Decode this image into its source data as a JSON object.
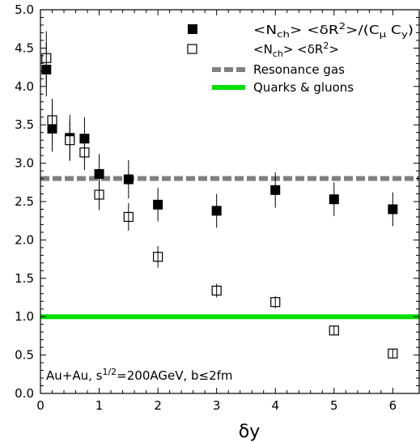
{
  "chart_data": {
    "type": "scatter",
    "xlabel": "δy",
    "xlim": [
      0,
      6.45
    ],
    "ylim": [
      0,
      5.0
    ],
    "x_ticks": [
      0,
      1,
      2,
      3,
      4,
      5,
      6
    ],
    "y_ticks": [
      0.0,
      0.5,
      1.0,
      1.5,
      2.0,
      2.5,
      3.0,
      3.5,
      4.0,
      4.5,
      5.0
    ],
    "x_tick_labels": [
      "0",
      "1",
      "2",
      "3",
      "4",
      "5",
      "6"
    ],
    "y_tick_labels": [
      "0.0",
      "0.5",
      "1.0",
      "1.5",
      "2.0",
      "2.5",
      "3.0",
      "3.5",
      "4.0",
      "4.5",
      "5.0"
    ],
    "legend_position": "top-right",
    "series": [
      {
        "name": "<N_ch> <δR²>/(C_μ C_y)",
        "marker": "filled-square",
        "color": "#000000",
        "x": [
          0.1,
          0.2,
          0.5,
          0.75,
          1.0,
          1.5,
          2.0,
          3.0,
          4.0,
          5.0,
          6.0
        ],
        "y": [
          4.22,
          3.45,
          3.33,
          3.32,
          2.86,
          2.79,
          2.46,
          2.38,
          2.65,
          2.53,
          2.4
        ],
        "err": [
          0.35,
          0.3,
          0.3,
          0.28,
          0.26,
          0.25,
          0.22,
          0.22,
          0.23,
          0.22,
          0.22
        ]
      },
      {
        "name": "<N_ch> <δR²>",
        "marker": "open-square",
        "color": "#000000",
        "x": [
          0.1,
          0.2,
          0.5,
          0.75,
          1.0,
          1.5,
          2.0,
          3.0,
          4.0,
          5.0,
          6.0
        ],
        "y": [
          4.37,
          3.56,
          3.3,
          3.14,
          2.59,
          2.3,
          1.78,
          1.34,
          1.19,
          0.82,
          0.52
        ],
        "err": [
          0.35,
          0.28,
          0.25,
          0.23,
          0.2,
          0.18,
          0.14,
          0.09,
          0.08,
          0.05,
          0.04
        ]
      }
    ],
    "reference_lines": [
      {
        "name": "Resonance gas",
        "y": 2.8,
        "color": "#808080",
        "style": "dashed"
      },
      {
        "name": "Quarks & gluons",
        "y": 1.0,
        "color": "#00e000",
        "style": "solid"
      }
    ],
    "annotation": "Au+Au, s^{1/2}=200AGeV, b≤2fm"
  }
}
